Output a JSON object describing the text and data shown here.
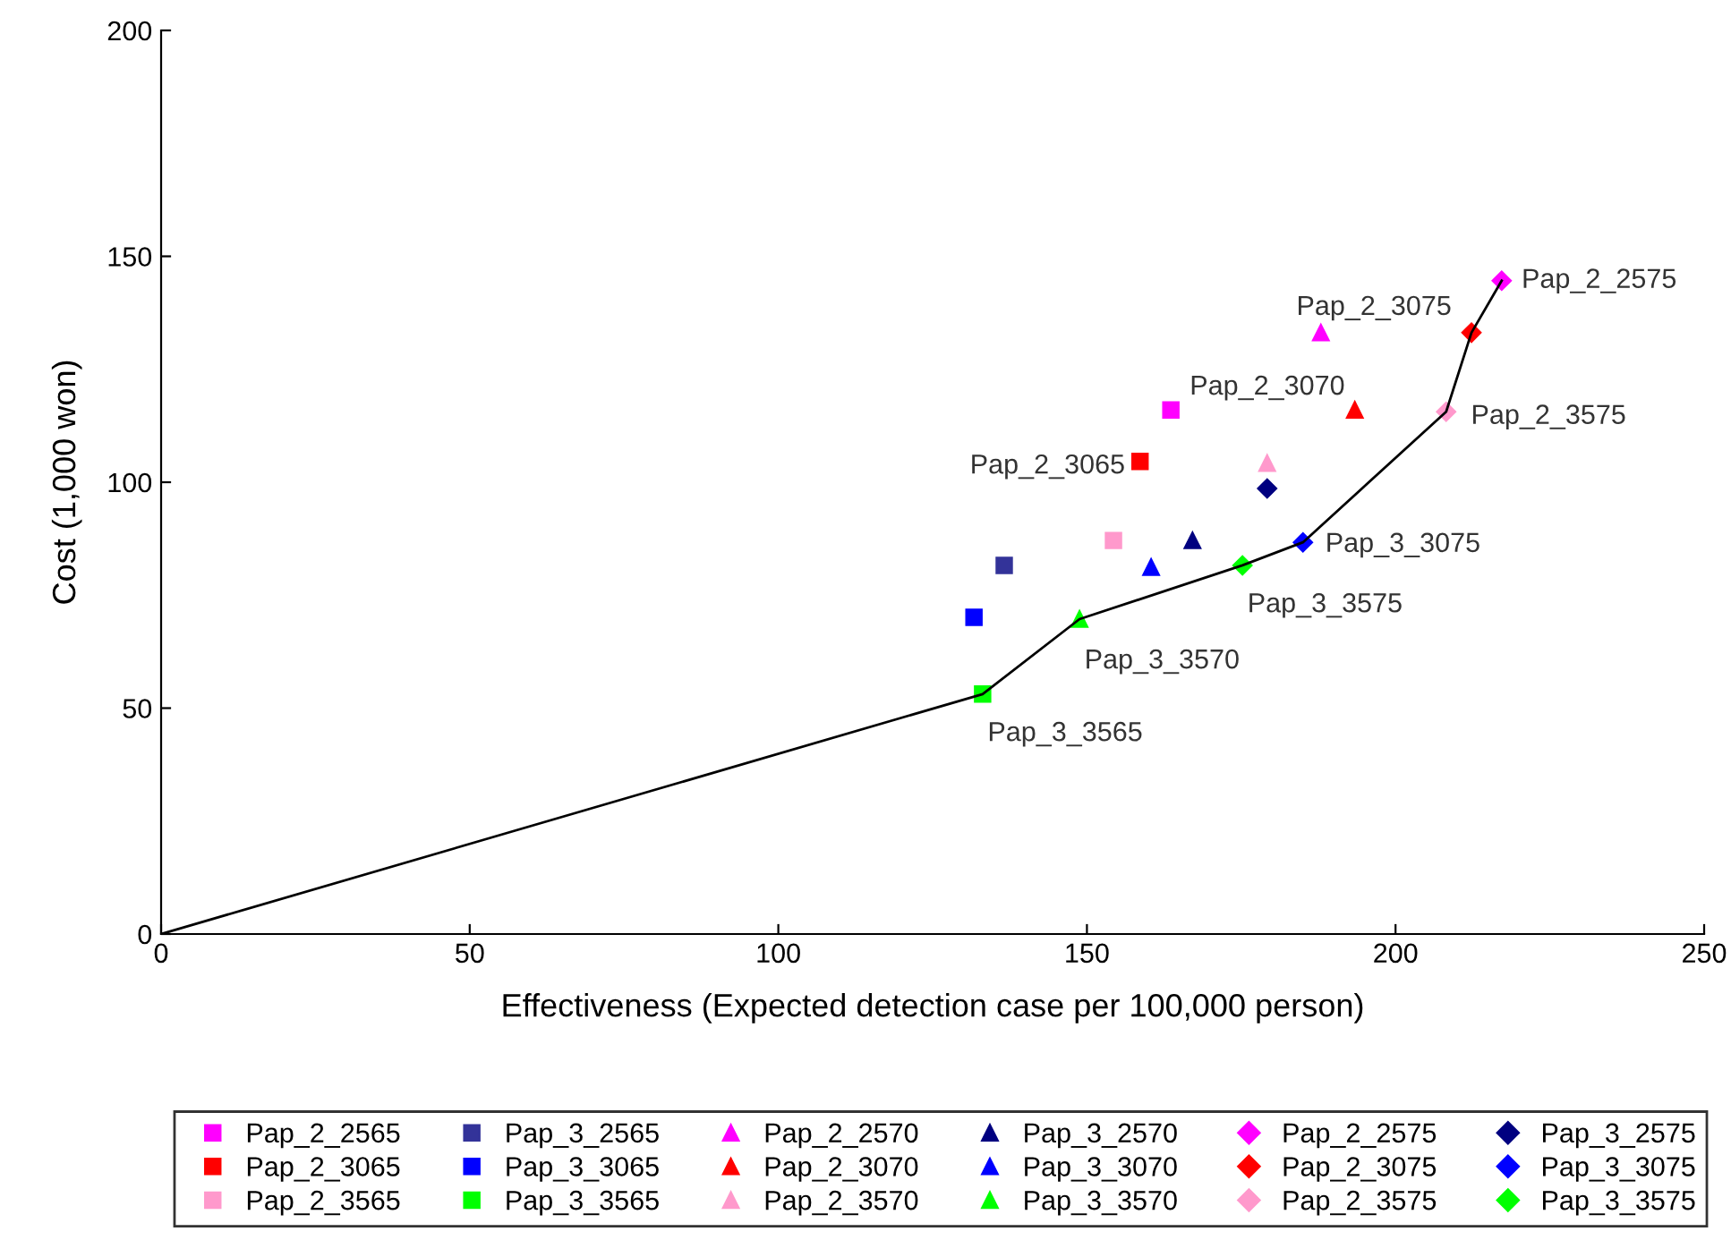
{
  "chart_data": {
    "type": "scatter",
    "xlabel": "Effectiveness (Expected detection case per 100,000 person)",
    "ylabel": "Cost (1,000 won)",
    "xlim": [
      0,
      250
    ],
    "xticks": [
      0,
      50,
      100,
      150,
      200,
      250
    ],
    "ylim": [
      0,
      200
    ],
    "yticks": [
      0,
      50,
      100,
      150,
      200
    ],
    "grid": false,
    "legend": "bottom",
    "series": [
      {
        "name": "Pap_2_2565",
        "color": "#ff00ff",
        "marker": "square",
        "x": [
          163.6
        ],
        "values": [
          116.0
        ]
      },
      {
        "name": "Pap_3_2565",
        "color": "#333399",
        "marker": "square",
        "x": [
          136.6
        ],
        "values": [
          81.6
        ]
      },
      {
        "name": "Pap_2_2570",
        "color": "#ff00ff",
        "marker": "triangle",
        "x": [
          187.9
        ],
        "values": [
          133.1
        ]
      },
      {
        "name": "Pap_3_2570",
        "color": "#000080",
        "marker": "triangle",
        "x": [
          167.1
        ],
        "values": [
          87.1
        ]
      },
      {
        "name": "Pap_2_2575",
        "color": "#ff00ff",
        "marker": "diamond",
        "x": [
          217.2
        ],
        "values": [
          144.6
        ]
      },
      {
        "name": "Pap_3_2575",
        "color": "#000080",
        "marker": "diamond",
        "x": [
          179.2
        ],
        "values": [
          98.6
        ]
      },
      {
        "name": "Pap_2_3065",
        "color": "#ff0000",
        "marker": "square",
        "x": [
          158.6
        ],
        "values": [
          104.6
        ]
      },
      {
        "name": "Pap_3_3065",
        "color": "#0000ff",
        "marker": "square",
        "x": [
          131.7
        ],
        "values": [
          70.1
        ]
      },
      {
        "name": "Pap_2_3070",
        "color": "#ff0000",
        "marker": "triangle",
        "x": [
          193.4
        ],
        "values": [
          116.0
        ]
      },
      {
        "name": "Pap_3_3070",
        "color": "#0000ff",
        "marker": "triangle",
        "x": [
          160.4
        ],
        "values": [
          81.2
        ]
      },
      {
        "name": "Pap_2_3075",
        "color": "#ff0000",
        "marker": "diamond",
        "x": [
          212.3
        ],
        "values": [
          133.1
        ]
      },
      {
        "name": "Pap_3_3075",
        "color": "#0000ff",
        "marker": "diamond",
        "x": [
          185.0
        ],
        "values": [
          86.7
        ]
      },
      {
        "name": "Pap_2_3565",
        "color": "#ff99cc",
        "marker": "square",
        "x": [
          154.3
        ],
        "values": [
          87.1
        ]
      },
      {
        "name": "Pap_3_3565",
        "color": "#00ff00",
        "marker": "square",
        "x": [
          133.1
        ],
        "values": [
          53.1
        ]
      },
      {
        "name": "Pap_2_3570",
        "color": "#ff99cc",
        "marker": "triangle",
        "x": [
          179.2
        ],
        "values": [
          104.2
        ]
      },
      {
        "name": "Pap_3_3570",
        "color": "#00ff00",
        "marker": "triangle",
        "x": [
          148.8
        ],
        "values": [
          69.7
        ]
      },
      {
        "name": "Pap_2_3575",
        "color": "#ff99cc",
        "marker": "diamond",
        "x": [
          208.2
        ],
        "values": [
          115.6
        ]
      },
      {
        "name": "Pap_3_3575",
        "color": "#00ff00",
        "marker": "diamond",
        "x": [
          175.2
        ],
        "values": [
          81.6
        ]
      },
      {
        "type": "line",
        "color": "#000000",
        "marker": "none",
        "x": [
          0,
          133.1,
          148.8,
          175.2,
          185.0,
          208.2,
          212.3,
          217.2
        ],
        "values": [
          0,
          53.1,
          69.7,
          81.6,
          86.7,
          115.6,
          133.1,
          144.6
        ]
      }
    ],
    "annotations": [
      {
        "text": "Pap_2_2575",
        "x": 217.2,
        "y": 144.6
      },
      {
        "text": "Pap_2_3075",
        "x": 212.3,
        "y": 133.1
      },
      {
        "text": "Pap_2_3070",
        "x": 193.4,
        "y": 116.0
      },
      {
        "text": "Pap_2_3065",
        "x": 158.6,
        "y": 104.6
      },
      {
        "text": "Pap_2_3575",
        "x": 208.2,
        "y": 115.6
      },
      {
        "text": "Pap_3_3075",
        "x": 185.0,
        "y": 86.7
      },
      {
        "text": "Pap_3_3575",
        "x": 175.2,
        "y": 81.6
      },
      {
        "text": "Pap_3_3570",
        "x": 148.8,
        "y": 69.7
      },
      {
        "text": "Pap_3_3565",
        "x": 133.1,
        "y": 53.1
      }
    ]
  }
}
